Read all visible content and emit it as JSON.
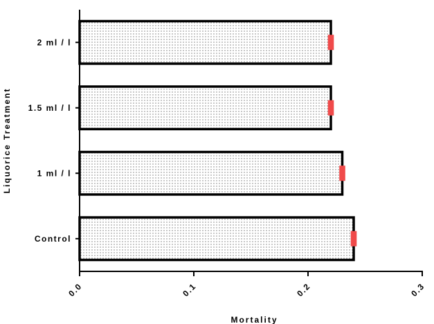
{
  "chart_data": {
    "type": "bar",
    "orientation": "horizontal",
    "title": "",
    "xlabel": "Mortality",
    "ylabel": "Liquorice Treatment",
    "xlim": [
      0.0,
      0.3
    ],
    "xticks": [
      "0.0",
      "0.1",
      "0.2",
      "0.3"
    ],
    "categories": [
      "2 ml / l",
      "1.5 ml / l",
      "1 ml / l",
      "Control"
    ],
    "values": [
      0.22,
      0.22,
      0.23,
      0.24
    ],
    "error": [
      0.002,
      0.002,
      0.002,
      0.002
    ],
    "grid": false,
    "legend": "none",
    "bar_fill_pattern": "dots",
    "colors": {
      "bar_edge": "#000000",
      "bar_fill": "#ffffff",
      "dots": "#555555",
      "error": "#f04a4a"
    }
  }
}
